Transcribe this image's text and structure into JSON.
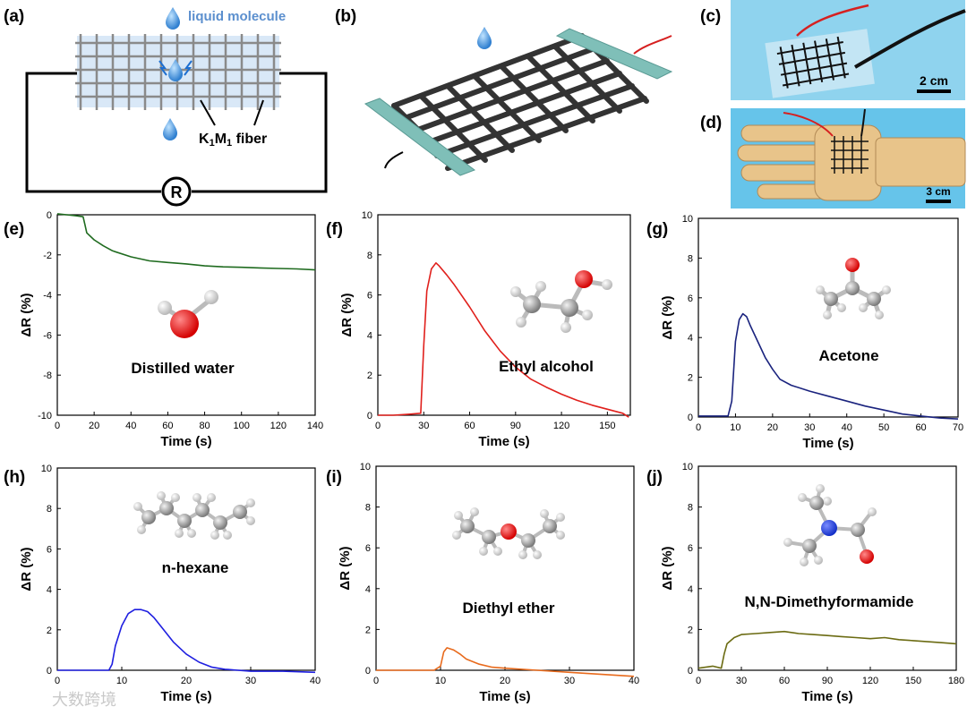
{
  "figure": {
    "panel_labels": [
      "(a)",
      "(b)",
      "(c)",
      "(d)",
      "(e)",
      "(f)",
      "(g)",
      "(h)",
      "(i)",
      "(j)"
    ],
    "schematic": {
      "liquid_label": "liquid molecule",
      "fiber_label_k": "K",
      "fiber_sub_1": "1",
      "fiber_label_m": "M",
      "fiber_sub_2": "1",
      "fiber_label_rest": " fiber",
      "resistor_symbol": "R"
    },
    "photos": {
      "c_scale": "2 cm",
      "d_scale": "3 cm"
    },
    "watermark": "大数跨境",
    "colors": {
      "water_drop": "#3a8fd8",
      "electrode": "#7fbfb8",
      "mesh_fill": "#d9e8f7"
    }
  },
  "chart_data": [
    {
      "id": "e",
      "type": "line",
      "molecule": "Distilled water",
      "color": "#1f6b1f",
      "xlabel": "Time (s)",
      "ylabel": "ΔR (%)",
      "xlim": [
        0,
        140
      ],
      "ylim": [
        -10,
        0
      ],
      "xticks": [
        0,
        20,
        40,
        60,
        80,
        100,
        120,
        140
      ],
      "yticks": [
        0,
        -2,
        -4,
        -6,
        -8,
        -10
      ],
      "x": [
        0,
        5,
        10,
        14,
        15,
        16,
        20,
        25,
        30,
        40,
        50,
        60,
        70,
        80,
        90,
        100,
        110,
        120,
        130,
        140
      ],
      "y": [
        0.05,
        0,
        -0.05,
        -0.1,
        -0.5,
        -0.9,
        -1.25,
        -1.55,
        -1.8,
        -2.1,
        -2.3,
        -2.38,
        -2.45,
        -2.55,
        -2.6,
        -2.62,
        -2.65,
        -2.68,
        -2.7,
        -2.75
      ]
    },
    {
      "id": "f",
      "type": "line",
      "molecule": "Ethyl alcohol",
      "color": "#e0201c",
      "xlabel": "Time (s)",
      "ylabel": "ΔR (%)",
      "xlim": [
        0,
        165
      ],
      "ylim": [
        0,
        10
      ],
      "xticks": [
        0,
        30,
        60,
        90,
        120,
        150
      ],
      "yticks": [
        0,
        2,
        4,
        6,
        8,
        10
      ],
      "x": [
        0,
        10,
        20,
        28,
        30,
        32,
        35,
        38,
        40,
        45,
        50,
        60,
        70,
        80,
        90,
        100,
        110,
        120,
        130,
        140,
        150,
        160,
        164
      ],
      "y": [
        0,
        0,
        0.05,
        0.1,
        3.5,
        6.2,
        7.3,
        7.6,
        7.45,
        7.0,
        6.5,
        5.4,
        4.2,
        3.2,
        2.4,
        1.8,
        1.4,
        1.05,
        0.75,
        0.5,
        0.3,
        0.1,
        -0.1
      ]
    },
    {
      "id": "g",
      "type": "line",
      "molecule": "Acetone",
      "color": "#1a237e",
      "xlabel": "Time (s)",
      "ylabel": "ΔR (%)",
      "xlim": [
        0,
        70
      ],
      "ylim": [
        0,
        10
      ],
      "xticks": [
        0,
        10,
        20,
        30,
        40,
        50,
        60,
        70
      ],
      "yticks": [
        0,
        2,
        4,
        6,
        8,
        10
      ],
      "x": [
        0,
        4,
        8,
        9,
        10,
        11,
        12,
        13,
        14,
        16,
        18,
        20,
        22,
        25,
        30,
        35,
        40,
        45,
        50,
        55,
        60,
        65,
        70
      ],
      "y": [
        0.05,
        0.05,
        0.05,
        0.8,
        3.8,
        4.9,
        5.2,
        5.05,
        4.6,
        3.8,
        3.0,
        2.4,
        1.9,
        1.6,
        1.3,
        1.05,
        0.8,
        0.55,
        0.35,
        0.15,
        0.05,
        -0.05,
        -0.1
      ]
    },
    {
      "id": "h",
      "type": "line",
      "molecule": "n-hexane",
      "color": "#1f1fe0",
      "xlabel": "Time (s)",
      "ylabel": "ΔR (%)",
      "xlim": [
        0,
        40
      ],
      "ylim": [
        0,
        10
      ],
      "xticks": [
        0,
        10,
        20,
        30,
        40
      ],
      "yticks": [
        0,
        2,
        4,
        6,
        8,
        10
      ],
      "x": [
        0,
        4,
        8,
        8.5,
        9,
        10,
        11,
        12,
        13,
        14,
        15,
        16,
        18,
        20,
        22,
        24,
        26,
        28,
        30,
        35,
        40
      ],
      "y": [
        0,
        0,
        0,
        0.3,
        1.2,
        2.2,
        2.8,
        3.0,
        3.0,
        2.9,
        2.6,
        2.2,
        1.4,
        0.8,
        0.4,
        0.15,
        0.05,
        0,
        -0.05,
        -0.05,
        -0.1
      ]
    },
    {
      "id": "i",
      "type": "line",
      "molecule": "Diethyl ether",
      "color": "#e86a1c",
      "xlabel": "Time (s)",
      "ylabel": "ΔR (%)",
      "xlim": [
        0,
        40
      ],
      "ylim": [
        0,
        10
      ],
      "xticks": [
        0,
        10,
        20,
        30,
        40
      ],
      "yticks": [
        0,
        2,
        4,
        6,
        8,
        10
      ],
      "x": [
        0,
        5,
        9,
        10,
        10.5,
        11,
        12,
        13,
        14,
        16,
        18,
        20,
        25,
        30,
        35,
        40
      ],
      "y": [
        0,
        0,
        0,
        0.2,
        0.9,
        1.1,
        1.0,
        0.8,
        0.55,
        0.3,
        0.15,
        0.1,
        0,
        -0.1,
        -0.2,
        -0.3
      ]
    },
    {
      "id": "j",
      "type": "line",
      "molecule": "N,N-Dimethyformamide",
      "color": "#6b6b12",
      "xlabel": "Time (s)",
      "ylabel": "ΔR (%)",
      "xlim": [
        0,
        180
      ],
      "ylim": [
        0,
        10
      ],
      "xticks": [
        0,
        30,
        60,
        90,
        120,
        150,
        180
      ],
      "yticks": [
        0,
        2,
        4,
        6,
        8,
        10
      ],
      "x": [
        0,
        10,
        16,
        18,
        20,
        25,
        30,
        40,
        50,
        60,
        70,
        80,
        90,
        100,
        110,
        120,
        130,
        140,
        150,
        160,
        170,
        180
      ],
      "y": [
        0.1,
        0.2,
        0.1,
        0.8,
        1.3,
        1.6,
        1.75,
        1.8,
        1.85,
        1.9,
        1.8,
        1.75,
        1.7,
        1.65,
        1.6,
        1.55,
        1.6,
        1.5,
        1.45,
        1.4,
        1.35,
        1.3
      ]
    }
  ]
}
